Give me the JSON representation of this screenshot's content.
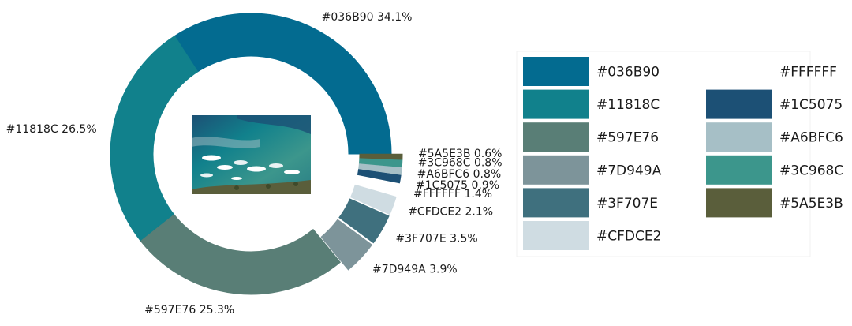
{
  "chart_data": {
    "type": "pie",
    "style": "donut",
    "slices": [
      {
        "label": "#036B90",
        "value": 34.1,
        "color": "#036B90",
        "text": "#036B90 34.1%"
      },
      {
        "label": "#11818C",
        "value": 26.5,
        "color": "#11818C",
        "text": "#11818C 26.5%"
      },
      {
        "label": "#597E76",
        "value": 25.3,
        "color": "#597E76",
        "text": "#597E76 25.3%"
      },
      {
        "label": "#7D949A",
        "value": 3.9,
        "color": "#7D949A",
        "text": "#7D949A 3.9%"
      },
      {
        "label": "#3F707E",
        "value": 3.5,
        "color": "#3F707E",
        "text": "#3F707E 3.5%"
      },
      {
        "label": "#CFDCE2",
        "value": 2.1,
        "color": "#CFDCE2",
        "text": "#CFDCE2 2.1%"
      },
      {
        "label": "#FFFFFF",
        "value": 1.4,
        "color": "#FFFFFF",
        "text": "#FFFFFF 1.4%"
      },
      {
        "label": "#1C5075",
        "value": 0.9,
        "color": "#1C5075",
        "text": "#1C5075 0.9%"
      },
      {
        "label": "#A6BFC6",
        "value": 0.8,
        "color": "#A6BFC6",
        "text": "#A6BFC6 0.8%"
      },
      {
        "label": "#3C968C",
        "value": 0.8,
        "color": "#3C968C",
        "text": "#3C968C 0.8%"
      },
      {
        "label": "#5A5E3B",
        "value": 0.6,
        "color": "#5A5E3B",
        "text": "#5A5E3B 0.6%"
      }
    ],
    "legend": {
      "placement": "right",
      "columns": [
        [
          "#036B90",
          "#11818C",
          "#597E76",
          "#7D949A",
          "#3F707E",
          "#CFDCE2"
        ],
        [
          "#FFFFFF",
          "#1C5075",
          "#A6BFC6",
          "#3C968C",
          "#5A5E3B"
        ]
      ]
    },
    "center_image": {
      "description": "photo of turquoise ocean water with white surf",
      "colors": [
        "#1C5075",
        "#11818C",
        "#3C968C",
        "#A6BFC6",
        "#FFFFFF"
      ]
    }
  }
}
